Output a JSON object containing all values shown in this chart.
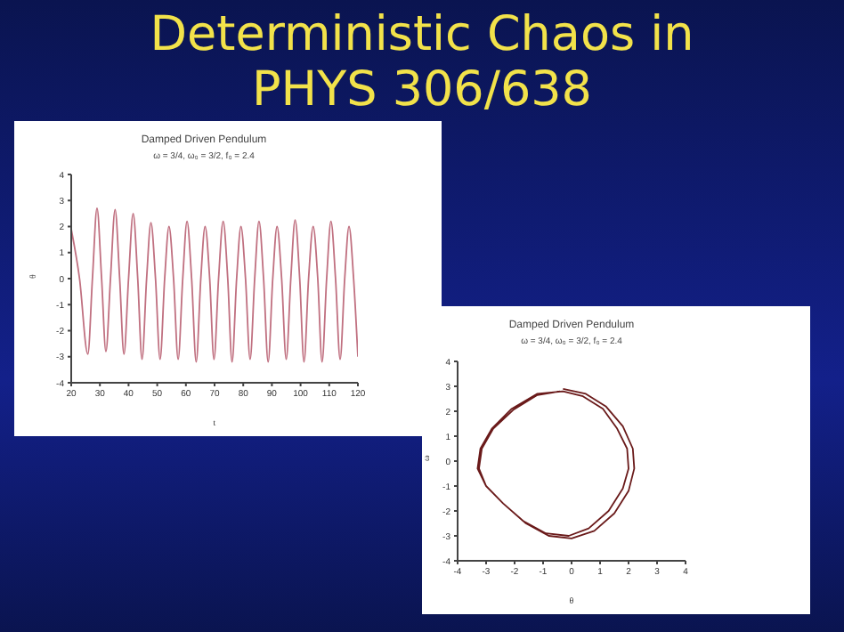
{
  "chart_data": [
    {
      "type": "line",
      "title": "Damped Driven Pendulum",
      "subtitle": "ω = 3/4, ω₀ = 3/2, f₀ = 2.4",
      "xlabel": "t",
      "ylabel": "θ",
      "annotations": [
        "Deterministic Chaos in PHYS 306/638"
      ],
      "x": [
        20,
        22.9,
        25.8,
        27.4,
        29,
        30.6,
        32.1,
        33.7,
        35.3,
        36.9,
        38.4,
        40,
        41.6,
        43.2,
        44.7,
        46.3,
        47.8,
        49.4,
        51,
        52.6,
        54.1,
        55.7,
        57.3,
        58.9,
        60.4,
        62,
        63.6,
        65.2,
        66.7,
        68.3,
        69.8,
        71.4,
        73,
        74.6,
        76.1,
        77.7,
        79.2,
        80.8,
        82.4,
        84,
        85.5,
        87.1,
        88.7,
        90.3,
        91.8,
        93.4,
        95,
        96.6,
        98.1,
        99.7,
        101.2,
        102.8,
        104.4,
        106,
        107.5,
        109.1,
        110.6,
        112.2,
        113.8,
        115.4,
        116.9,
        118.5,
        120
      ],
      "values": [
        1.9,
        0,
        -2.9,
        0,
        2.7,
        0,
        -2.8,
        0,
        2.65,
        0,
        -2.9,
        0,
        2.5,
        0,
        -3.1,
        0,
        2.15,
        0,
        -3.1,
        0,
        2.0,
        0,
        -3.1,
        0,
        2.2,
        0,
        -3.2,
        0,
        2.0,
        0,
        -3.1,
        0,
        2.2,
        0,
        -3.2,
        0,
        2.0,
        0,
        -3.1,
        0,
        2.2,
        0,
        -3.2,
        0,
        2.0,
        0,
        -3.1,
        0,
        2.25,
        0,
        -3.2,
        0,
        2.0,
        0,
        -3.2,
        0,
        2.2,
        0,
        -3.1,
        0,
        2.0,
        0,
        -3.0
      ],
      "color": "#c07080",
      "xlim": [
        20,
        120
      ],
      "xticks": [
        20,
        30,
        40,
        50,
        60,
        70,
        80,
        90,
        100,
        110,
        120
      ],
      "ylim": [
        -4,
        4
      ],
      "yticks": [
        -4,
        -3,
        -2,
        -1,
        0,
        1,
        2,
        3,
        4
      ],
      "marker": "none",
      "line_style": "solid",
      "grid": false
    },
    {
      "type": "line",
      "title": "Damped Driven Pendulum",
      "subtitle": "ω = 3/4, ω₀ = 3/2, f₀ = 2.4",
      "xlabel": "θ",
      "ylabel": "ω",
      "series": [
        {
          "color": "#6a1a1a",
          "x": [
            -0.3,
            0.5,
            1.2,
            1.8,
            2.15,
            2.2,
            2.0,
            1.5,
            0.8,
            0,
            -0.8,
            -1.6,
            -2.4,
            -3.0,
            -3.3,
            -3.2,
            -2.8,
            -2.1,
            -1.2,
            -0.3,
            0.4,
            1.1,
            1.6,
            1.95,
            2.0,
            1.8,
            1.3,
            0.6,
            -0.1,
            -0.9,
            -1.7,
            -2.4,
            -3.0,
            -3.25,
            -3.15,
            -2.75,
            -2.05,
            -1.2,
            -0.4
          ],
          "values": [
            2.9,
            2.7,
            2.2,
            1.4,
            0.5,
            -0.3,
            -1.2,
            -2.1,
            -2.8,
            -3.1,
            -3.0,
            -2.5,
            -1.7,
            -1.0,
            -0.3,
            0.5,
            1.3,
            2.1,
            2.7,
            2.8,
            2.6,
            2.1,
            1.3,
            0.5,
            -0.3,
            -1.1,
            -2.0,
            -2.7,
            -3.0,
            -2.9,
            -2.4,
            -1.7,
            -1.0,
            -0.3,
            0.5,
            1.3,
            2.05,
            2.65,
            2.8
          ]
        }
      ],
      "xlim": [
        -4,
        4
      ],
      "xticks": [
        -4,
        -3,
        -2,
        -1,
        0,
        1,
        2,
        3,
        4
      ],
      "ylim": [
        -4,
        4
      ],
      "yticks": [
        -4,
        -3,
        -2,
        -1,
        0,
        1,
        2,
        3,
        4
      ],
      "marker": "none",
      "line_style": "solid",
      "grid": false
    }
  ]
}
